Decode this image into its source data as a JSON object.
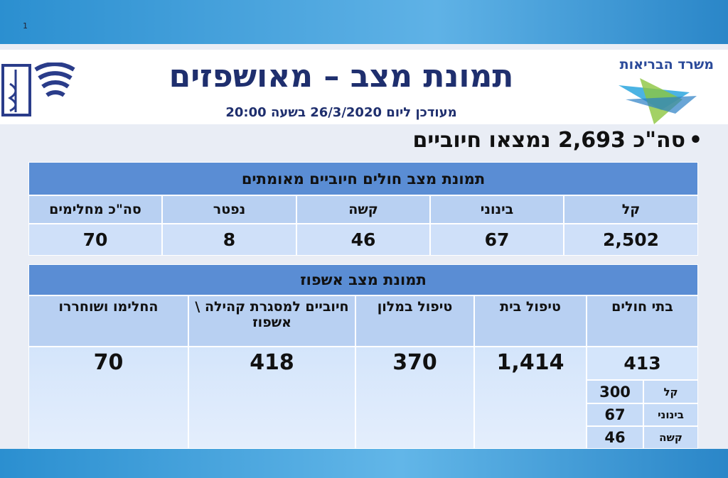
{
  "page_number": "1",
  "header": {
    "ministry": "משרד הבריאות",
    "title": "תמונת מצב – מאושפזים",
    "subtitle": "מעודכן ליום 26/3/2020 בשעה 20:00"
  },
  "summary": "סה\"כ 2,693 נמצאו חיוביים",
  "status_table": {
    "title": "תמונת מצב חולים חיוביים מאומתים",
    "columns": [
      "קל",
      "בינוני",
      "קשה",
      "נפטר",
      "סה\"כ מחלימים"
    ],
    "values": [
      "2,502",
      "67",
      "46",
      "8",
      "70"
    ]
  },
  "hospitalization_table": {
    "title": "תמונת מצב אשפוז",
    "columns": [
      "בתי חולים",
      "טיפול בית",
      "טיפול במלון",
      "חיוביים למסגרת קהילה \\ אשפוז",
      "החלימו ושוחררו"
    ],
    "values": [
      "413",
      "1,414",
      "370",
      "418",
      "70"
    ],
    "hospital_breakdown": [
      {
        "label": "קל",
        "value": "300"
      },
      {
        "label": "בינוני",
        "value": "67"
      },
      {
        "label": "קשה",
        "value": "46"
      }
    ]
  }
}
